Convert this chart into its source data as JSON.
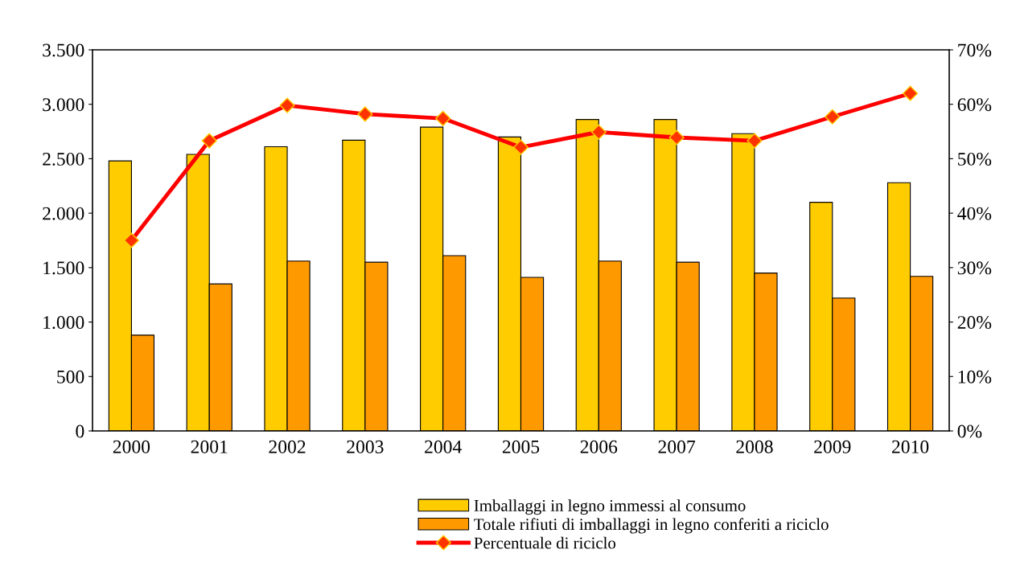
{
  "chart_data": {
    "type": "bar",
    "categories": [
      "2000",
      "2001",
      "2002",
      "2003",
      "2004",
      "2005",
      "2006",
      "2007",
      "2008",
      "2009",
      "2010"
    ],
    "series": [
      {
        "name": "Imballaggi in legno immessi al consumo",
        "color": "#ffcc00",
        "values": [
          2480,
          2540,
          2610,
          2670,
          2790,
          2700,
          2860,
          2860,
          2730,
          2100,
          2280
        ]
      },
      {
        "name": "Totale rifiuti di imballaggi in legno conferiti a riciclo",
        "color": "#ff9900",
        "values": [
          880,
          1350,
          1560,
          1550,
          1610,
          1410,
          1560,
          1550,
          1450,
          1220,
          1420
        ]
      },
      {
        "name": "Percentuale di riciclo",
        "type": "line",
        "axis": "y2",
        "color": "#ff0000",
        "marker": "diamond",
        "values": [
          35.0,
          53.3,
          59.8,
          58.2,
          57.4,
          52.1,
          54.9,
          53.9,
          53.3,
          57.7,
          62.0
        ]
      }
    ],
    "ylim": [
      0,
      3500
    ],
    "yticks": [
      {
        "value": 0,
        "label": "0"
      },
      {
        "value": 500,
        "label": "500"
      },
      {
        "value": 1000,
        "label": "1.000"
      },
      {
        "value": 1500,
        "label": "1.500"
      },
      {
        "value": 2000,
        "label": "2.000"
      },
      {
        "value": 2500,
        "label": "2.500"
      },
      {
        "value": 3000,
        "label": "3.000"
      },
      {
        "value": 3500,
        "label": "3.500"
      }
    ],
    "y2lim": [
      0,
      70
    ],
    "y2ticks": [
      {
        "value": 0,
        "label": "0%"
      },
      {
        "value": 10,
        "label": "10%"
      },
      {
        "value": 20,
        "label": "20%"
      },
      {
        "value": 30,
        "label": "30%"
      },
      {
        "value": 40,
        "label": "40%"
      },
      {
        "value": 50,
        "label": "50%"
      },
      {
        "value": 60,
        "label": "60%"
      },
      {
        "value": 70,
        "label": "70%"
      }
    ],
    "grid": false,
    "legend": "bottom"
  }
}
